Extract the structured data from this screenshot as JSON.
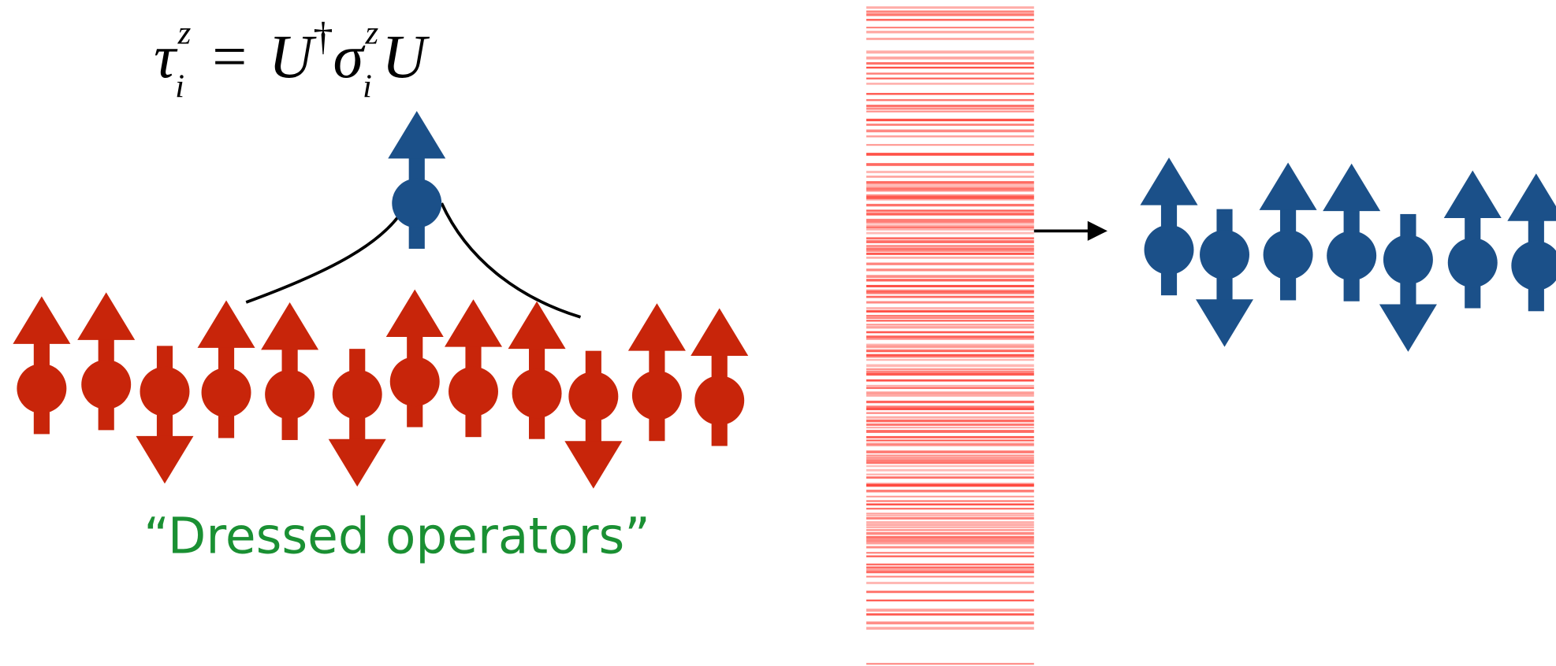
{
  "equation": {
    "tau": "τ",
    "tau_sub": "i",
    "tau_sup": "z",
    "equals": "=",
    "u_dagger": "U",
    "dagger": "†",
    "sigma": "σ",
    "sigma_sub": "i",
    "sigma_sup": "z",
    "u": "U"
  },
  "caption": "“Dressed operators”"
}
